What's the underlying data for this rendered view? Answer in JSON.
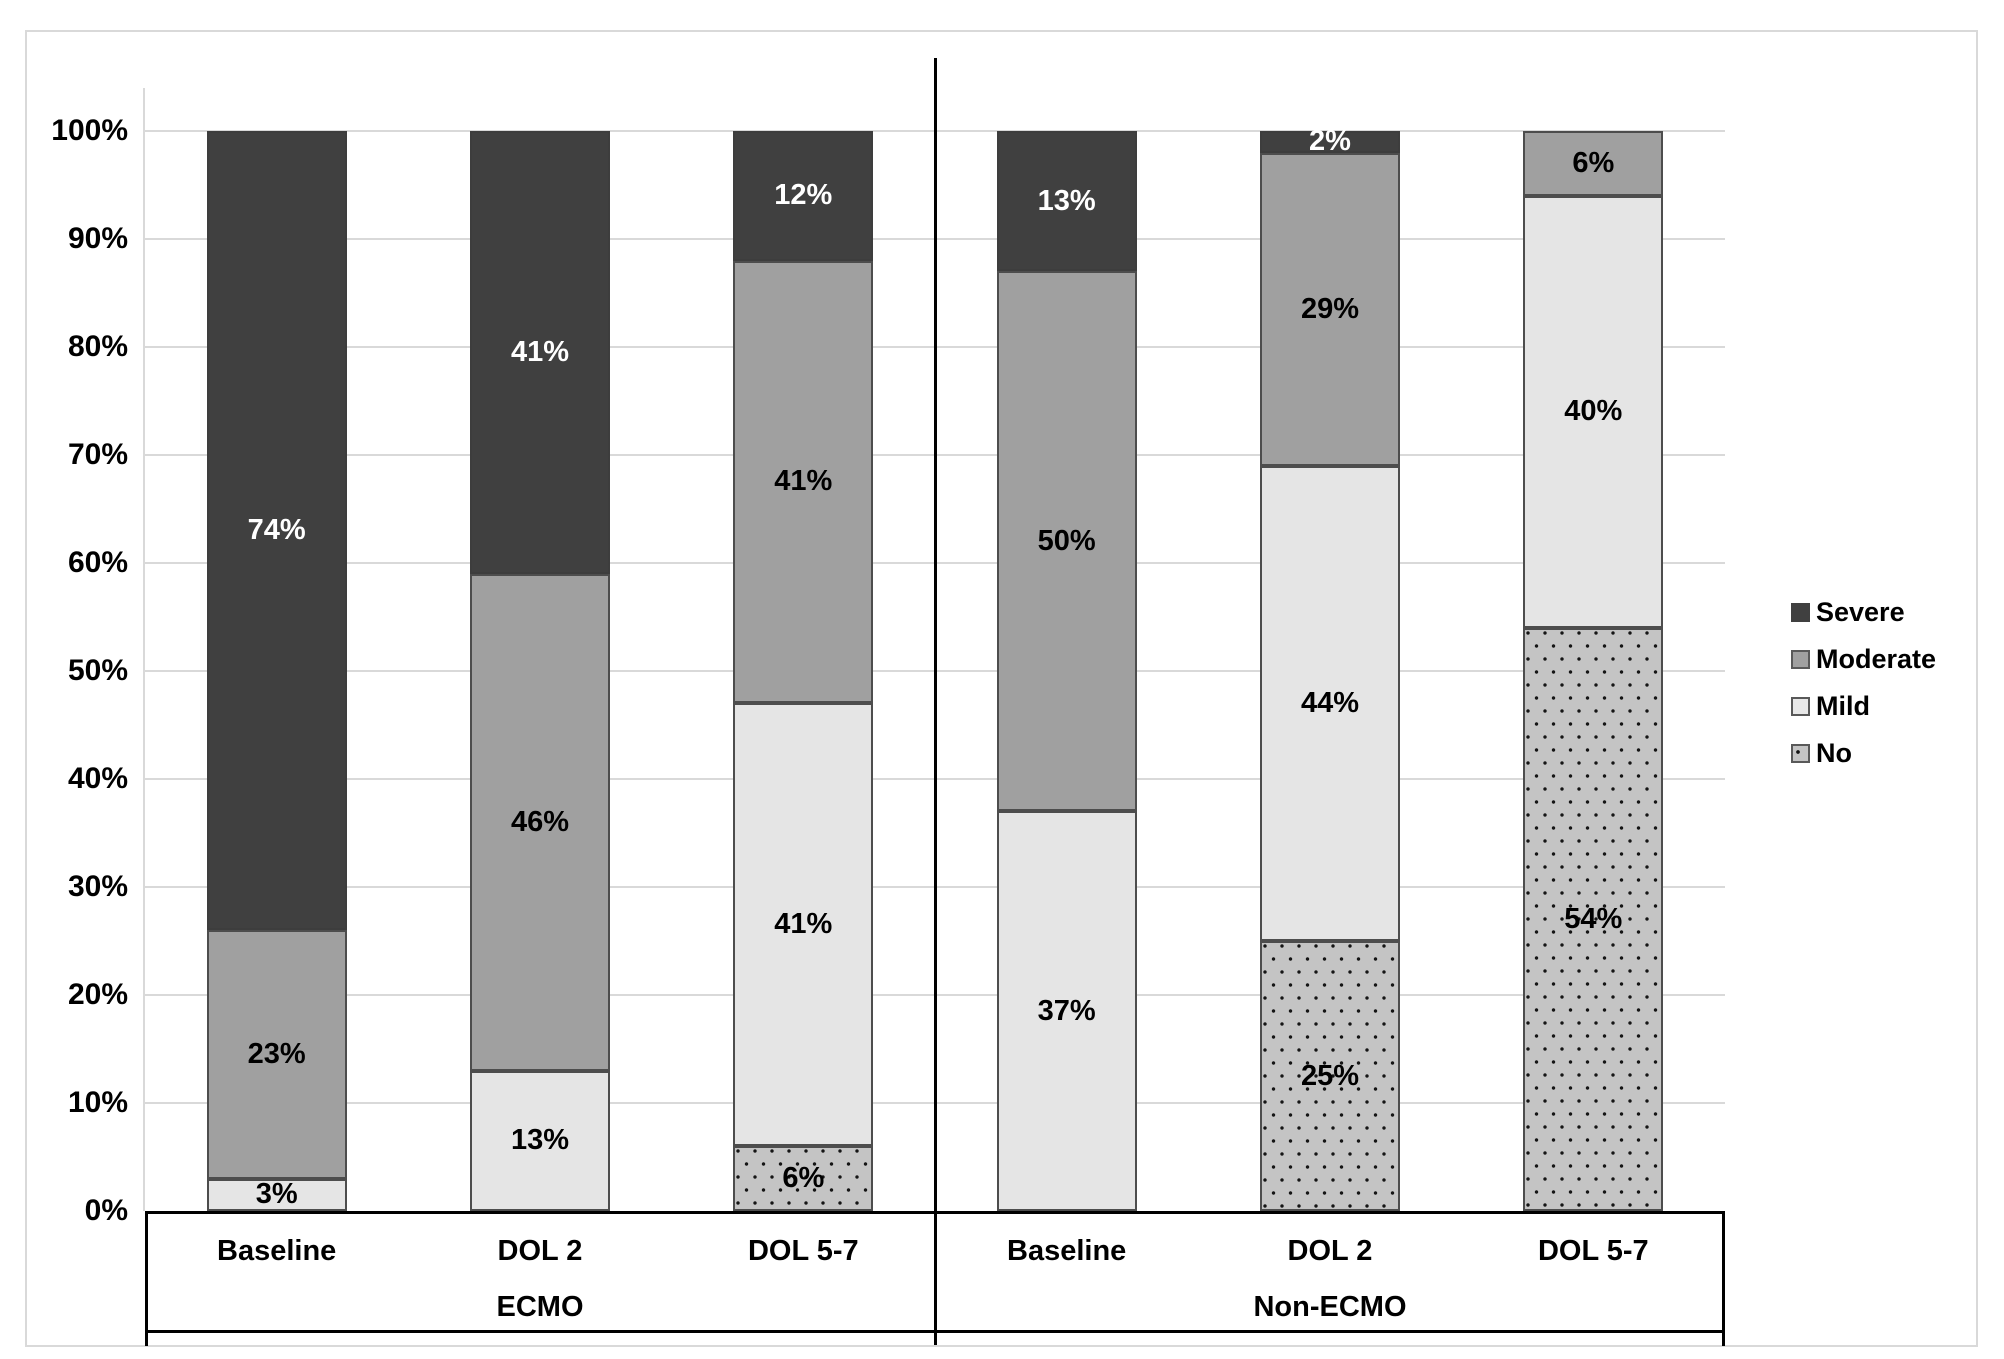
{
  "chart_data": {
    "type": "bar",
    "variant": "100-percent-stacked-column",
    "title": "",
    "xlabel": "",
    "ylabel": "",
    "y_axis": {
      "range": [
        0,
        100
      ],
      "grid": true,
      "ticks": [
        "0%",
        "10%",
        "20%",
        "30%",
        "40%",
        "50%",
        "60%",
        "70%",
        "80%",
        "90%",
        "100%"
      ]
    },
    "legend": {
      "position": "right",
      "entries": [
        "Severe",
        "Moderate",
        "Mild",
        "No"
      ]
    },
    "series_styles": {
      "Severe": {
        "color": "#404040",
        "text_color": "#ffffff",
        "pattern": "solid"
      },
      "Moderate": {
        "color": "#a0a0a0",
        "text_color": "#000000",
        "pattern": "solid"
      },
      "Mild": {
        "color": "#e5e5e5",
        "text_color": "#000000",
        "pattern": "solid"
      },
      "No": {
        "color": "#c4c4c4",
        "text_color": "#000000",
        "pattern": "dots"
      }
    },
    "groups": [
      {
        "label": "ECMO",
        "bars": [
          {
            "category": "Baseline",
            "segments": [
              {
                "series": "Mild",
                "value": 3,
                "label": "3%"
              },
              {
                "series": "Moderate",
                "value": 23,
                "label": "23%"
              },
              {
                "series": "Severe",
                "value": 74,
                "label": "74%"
              }
            ]
          },
          {
            "category": "DOL 2",
            "segments": [
              {
                "series": "Mild",
                "value": 13,
                "label": "13%"
              },
              {
                "series": "Moderate",
                "value": 46,
                "label": "46%"
              },
              {
                "series": "Severe",
                "value": 41,
                "label": "41%"
              }
            ]
          },
          {
            "category": "DOL 5-7",
            "segments": [
              {
                "series": "No",
                "value": 6,
                "label": "6%"
              },
              {
                "series": "Mild",
                "value": 41,
                "label": "41%"
              },
              {
                "series": "Moderate",
                "value": 41,
                "label": "41%"
              },
              {
                "series": "Severe",
                "value": 12,
                "label": "12%"
              }
            ]
          }
        ]
      },
      {
        "label": "Non-ECMO",
        "bars": [
          {
            "category": "Baseline",
            "segments": [
              {
                "series": "Mild",
                "value": 37,
                "label": "37%"
              },
              {
                "series": "Moderate",
                "value": 50,
                "label": "50%"
              },
              {
                "series": "Severe",
                "value": 13,
                "label": "13%"
              }
            ]
          },
          {
            "category": "DOL 2",
            "segments": [
              {
                "series": "No",
                "value": 25,
                "label": "25%"
              },
              {
                "series": "Mild",
                "value": 44,
                "label": "44%"
              },
              {
                "series": "Moderate",
                "value": 29,
                "label": "29%"
              },
              {
                "series": "Severe",
                "value": 2,
                "label": "2%"
              }
            ]
          },
          {
            "category": "DOL 5-7",
            "segments": [
              {
                "series": "No",
                "value": 54,
                "label": "54%"
              },
              {
                "series": "Mild",
                "value": 40,
                "label": "40%"
              },
              {
                "series": "Moderate",
                "value": 6,
                "label": "6%"
              }
            ]
          }
        ]
      }
    ]
  },
  "colors": {
    "background": "#ffffff",
    "chart_border": "#d9d9d9",
    "gridline": "#d9d9d9",
    "axis_box_border": "#000000",
    "group_divider": "#000000",
    "segment_border": "#4d4d4d"
  }
}
